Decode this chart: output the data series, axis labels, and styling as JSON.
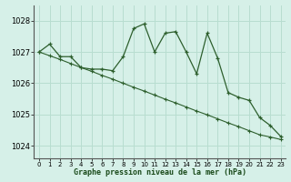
{
  "bg_color": "#d6f0e8",
  "grid_color": "#b8ddd0",
  "line_color": "#2d5f2d",
  "xlabel": "Graphe pression niveau de la mer (hPa)",
  "ylim": [
    1023.6,
    1028.5
  ],
  "xlim": [
    -0.5,
    23.5
  ],
  "yticks": [
    1024,
    1025,
    1026,
    1027,
    1028
  ],
  "xticks": [
    0,
    1,
    2,
    3,
    4,
    5,
    6,
    7,
    8,
    9,
    10,
    11,
    12,
    13,
    14,
    15,
    16,
    17,
    18,
    19,
    20,
    21,
    22,
    23
  ],
  "series1_x": [
    0,
    1,
    2,
    3,
    4,
    5,
    6,
    7,
    8,
    9,
    10,
    11,
    12,
    13,
    14,
    15,
    16,
    17,
    18,
    19,
    20,
    21,
    22,
    23
  ],
  "series1_y": [
    1027.0,
    1027.25,
    1026.85,
    1026.85,
    1026.5,
    1026.45,
    1026.45,
    1026.4,
    1026.85,
    1027.75,
    1027.9,
    1027.0,
    1027.6,
    1027.65,
    1027.0,
    1026.3,
    1027.6,
    1026.8,
    1025.7,
    1025.55,
    1025.45,
    1024.9,
    1024.65,
    1024.3
  ],
  "series2_x": [
    0,
    1,
    2,
    3,
    4,
    5,
    6,
    7,
    8,
    9,
    10,
    11,
    12,
    13,
    14,
    15,
    16,
    17,
    18,
    19,
    20,
    21,
    22,
    23
  ],
  "series2_y": [
    1027.0,
    1026.88,
    1026.76,
    1026.63,
    1026.5,
    1026.38,
    1026.25,
    1026.13,
    1026.0,
    1025.87,
    1025.75,
    1025.62,
    1025.49,
    1025.37,
    1025.24,
    1025.11,
    1024.99,
    1024.86,
    1024.73,
    1024.61,
    1024.48,
    1024.35,
    1024.28,
    1024.2
  ]
}
